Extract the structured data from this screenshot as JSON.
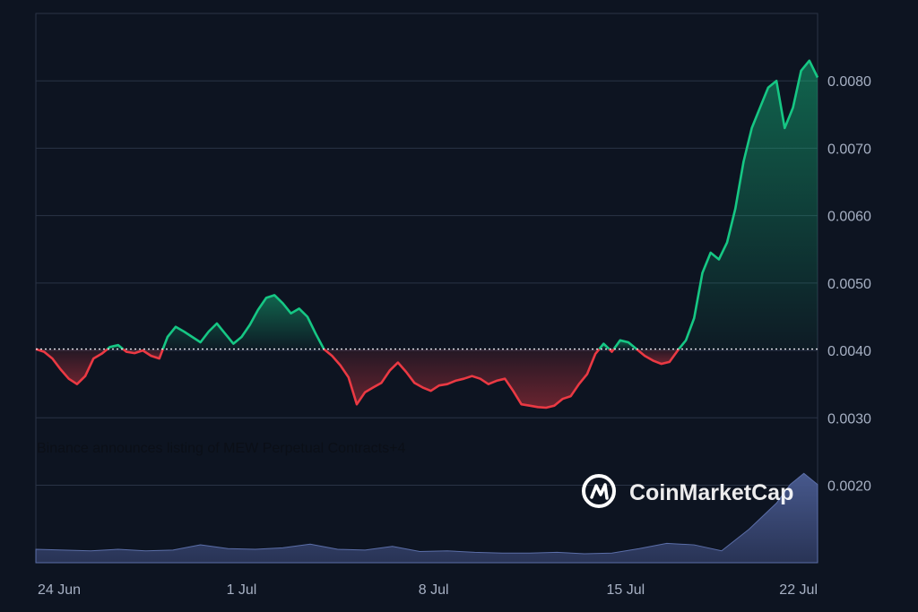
{
  "chart_data": {
    "type": "line",
    "baseline": 0.00402,
    "ylim": [
      0.00085,
      0.009
    ],
    "xlim": [
      0,
      28.5
    ],
    "y_ticks": [
      {
        "value": 0.008,
        "label": "0.0080"
      },
      {
        "value": 0.007,
        "label": "0.0070"
      },
      {
        "value": 0.006,
        "label": "0.0060"
      },
      {
        "value": 0.005,
        "label": "0.0050"
      },
      {
        "value": 0.004,
        "label": "0.0040"
      },
      {
        "value": 0.003,
        "label": "0.0030"
      },
      {
        "value": 0.002,
        "label": "0.0020"
      }
    ],
    "x_ticks": [
      {
        "value": 0,
        "label": "24 Jun"
      },
      {
        "value": 7.5,
        "label": "1 Jul"
      },
      {
        "value": 14.5,
        "label": "8 Jul"
      },
      {
        "value": 21.5,
        "label": "15 Jul"
      },
      {
        "value": 28.5,
        "label": "22 Jul"
      }
    ],
    "grid": true,
    "series": [
      {
        "x": [
          0,
          0.3,
          0.6,
          0.9,
          1.2,
          1.5,
          1.8,
          2.1,
          2.4,
          2.7,
          3.0,
          3.3,
          3.6,
          3.9,
          4.2,
          4.5,
          4.8,
          5.1,
          5.4,
          5.7,
          6.0,
          6.3,
          6.6,
          6.9,
          7.2,
          7.5,
          7.8,
          8.1,
          8.4,
          8.7,
          9.0,
          9.3,
          9.6,
          9.9,
          10.2,
          10.5,
          10.8,
          11.1,
          11.4,
          11.7,
          12.0,
          12.3,
          12.6,
          12.9,
          13.2,
          13.5,
          13.8,
          14.1,
          14.4,
          14.7,
          15.0,
          15.3,
          15.6,
          15.9,
          16.2,
          16.5,
          16.8,
          17.1,
          17.4,
          17.7,
          18.0,
          18.3,
          18.6,
          18.9,
          19.2,
          19.5,
          19.8,
          20.1,
          20.4,
          20.7,
          21.0,
          21.3,
          21.6,
          21.9,
          22.2,
          22.5,
          22.8,
          23.1,
          23.4,
          23.7,
          24.0,
          24.3,
          24.6,
          24.9,
          25.2,
          25.5,
          25.8,
          26.1,
          26.4,
          26.7,
          27.0,
          27.3,
          27.6,
          27.9,
          28.2,
          28.5
        ],
        "y": [
          0.00402,
          0.00398,
          0.00388,
          0.00372,
          0.00358,
          0.0035,
          0.00362,
          0.00388,
          0.00395,
          0.00405,
          0.00408,
          0.00398,
          0.00396,
          0.004,
          0.00392,
          0.00388,
          0.0042,
          0.00435,
          0.00428,
          0.0042,
          0.00412,
          0.00428,
          0.0044,
          0.00425,
          0.0041,
          0.0042,
          0.00438,
          0.0046,
          0.00478,
          0.00482,
          0.0047,
          0.00455,
          0.00462,
          0.0045,
          0.00425,
          0.00402,
          0.00392,
          0.00378,
          0.0036,
          0.0032,
          0.00338,
          0.00345,
          0.00352,
          0.0037,
          0.00382,
          0.00368,
          0.00352,
          0.00345,
          0.0034,
          0.00348,
          0.0035,
          0.00355,
          0.00358,
          0.00362,
          0.00358,
          0.0035,
          0.00355,
          0.00358,
          0.0034,
          0.0032,
          0.00318,
          0.00316,
          0.00315,
          0.00318,
          0.00328,
          0.00332,
          0.0035,
          0.00365,
          0.00395,
          0.0041,
          0.00398,
          0.00415,
          0.00412,
          0.00402,
          0.00392,
          0.00385,
          0.0038,
          0.00383,
          0.004,
          0.00415,
          0.00448,
          0.00515,
          0.00545,
          0.00535,
          0.0056,
          0.0061,
          0.0068,
          0.0073,
          0.0076,
          0.0079,
          0.008,
          0.0073,
          0.0076,
          0.00815,
          0.0083,
          0.00805
        ]
      }
    ],
    "volume": {
      "ylim": [
        0,
        0.0013
      ],
      "x": [
        0,
        1,
        2,
        3,
        4,
        5,
        6,
        7,
        8,
        9,
        10,
        11,
        12,
        13,
        14,
        15,
        16,
        17,
        18,
        19,
        20,
        21,
        22,
        23,
        24,
        25,
        26,
        27,
        27.5,
        28,
        28.5
      ],
      "values": [
        0.00018,
        0.00017,
        0.00016,
        0.00018,
        0.00016,
        0.00017,
        0.00024,
        0.00019,
        0.00018,
        0.0002,
        0.00025,
        0.00018,
        0.00017,
        0.00022,
        0.00015,
        0.00016,
        0.00014,
        0.00013,
        0.00013,
        0.00014,
        0.00012,
        0.00013,
        0.00019,
        0.00026,
        0.00024,
        0.00016,
        0.00045,
        0.0008,
        0.00105,
        0.0012,
        0.00105
      ]
    }
  },
  "annotation": {
    "text": "Binance announces listing of MEW Perpetual Contracts+4"
  },
  "watermark": {
    "brand": "CoinMarketCap"
  },
  "colors": {
    "background": "#0d1421",
    "up": "#16c784",
    "down": "#ea3943",
    "grid": "#2a3346",
    "volume": "#3a4a78",
    "baseline": "#e6e8ee"
  }
}
